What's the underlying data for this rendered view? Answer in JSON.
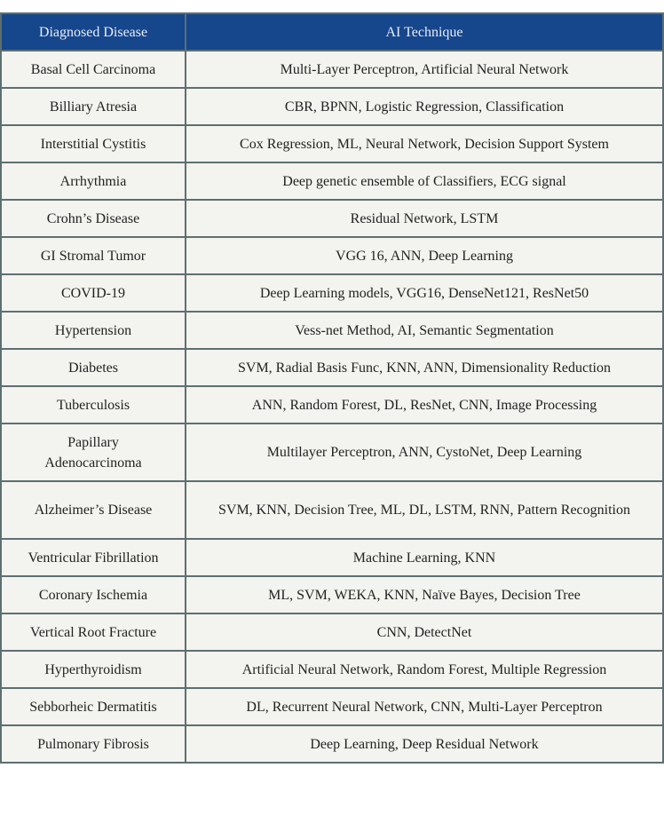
{
  "header": {
    "disease": "Diagnosed Disease",
    "technique": "AI Technique"
  },
  "colors": {
    "header_bg": "#16468c",
    "cell_bg": "#f3f3ef",
    "border": "#5d6f70"
  },
  "rows": [
    {
      "disease": "Basal Cell Carcinoma",
      "technique": "Multi-Layer Perceptron, Artificial Neural Network"
    },
    {
      "disease": "Billiary Atresia",
      "technique": "CBR, BPNN, Logistic Regression, Classification"
    },
    {
      "disease": "Interstitial Cystitis",
      "technique": "Cox Regression, ML, Neural Network, Decision Support System"
    },
    {
      "disease": "Arrhythmia",
      "technique": "Deep genetic ensemble of Classifiers, ECG signal"
    },
    {
      "disease": "Crohn’s Disease",
      "technique": "Residual Network, LSTM"
    },
    {
      "disease": "GI Stromal Tumor",
      "technique": "VGG 16, ANN, Deep Learning"
    },
    {
      "disease": "COVID-19",
      "technique": "Deep Learning models, VGG16, DenseNet121, ResNet50"
    },
    {
      "disease": "Hypertension",
      "technique": "Vess-net Method, AI, Semantic Segmentation"
    },
    {
      "disease": "Diabetes",
      "technique": "SVM, Radial Basis Func, KNN, ANN, Dimensionality Reduction"
    },
    {
      "disease": "Tuberculosis",
      "technique": "ANN, Random Forest, DL, ResNet, CNN, Image Processing"
    },
    {
      "disease": "Papillary Adenocarcinoma",
      "technique": "Multilayer Perceptron, ANN, CystoNet, Deep Learning"
    },
    {
      "disease": "Alzheimer’s Disease",
      "technique": "SVM, KNN, Decision Tree, ML, DL, LSTM, RNN, Pattern Recognition"
    },
    {
      "disease": "Ventricular Fibrillation",
      "technique": "Machine Learning, KNN"
    },
    {
      "disease": "Coronary Ischemia",
      "technique": "ML, SVM, WEKA, KNN, Naïve Bayes, Decision Tree"
    },
    {
      "disease": "Vertical Root Fracture",
      "technique": "CNN, DetectNet"
    },
    {
      "disease": "Hyperthyroidism",
      "technique": "Artificial Neural Network, Random Forest, Multiple Regression"
    },
    {
      "disease": "Sebborheic Dermatitis",
      "technique": "DL, Recurrent Neural Network, CNN, Multi-Layer Perceptron"
    },
    {
      "disease": "Pulmonary Fibrosis",
      "technique": "Deep Learning, Deep Residual Network"
    }
  ]
}
